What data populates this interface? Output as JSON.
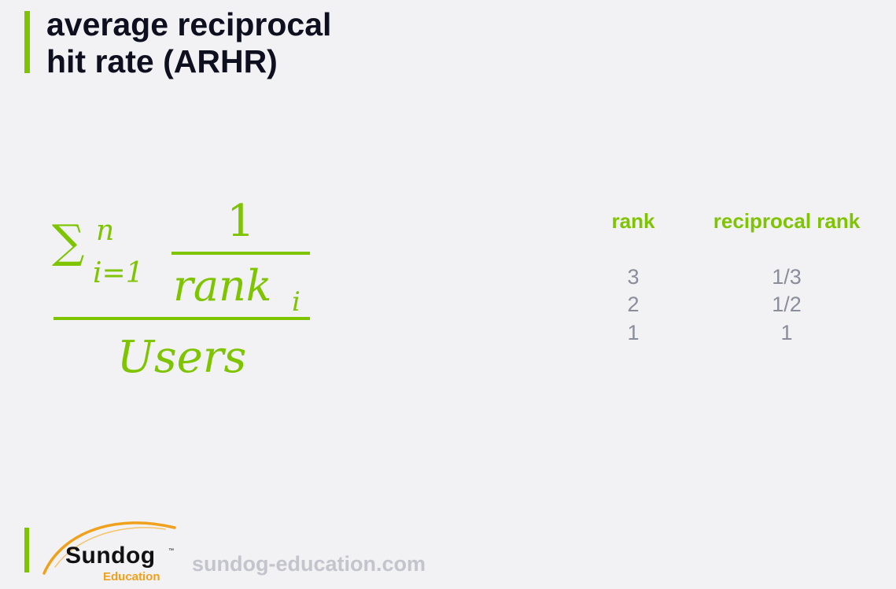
{
  "slide": {
    "title_line1": "average reciprocal",
    "title_line2": "hit rate (ARHR)",
    "accent_color": "#7ec400"
  },
  "formula": {
    "sum_symbol": "∑",
    "upper_limit": "n",
    "lower_limit": "i=1",
    "numerator": "1",
    "denominator": "rank",
    "denominator_subscript": "i",
    "outer_denominator": "Users"
  },
  "table": {
    "headers": [
      "rank",
      "reciprocal rank"
    ],
    "rows": [
      [
        "3",
        "1/3"
      ],
      [
        "2",
        "1/2"
      ],
      [
        "1",
        "1"
      ]
    ]
  },
  "footer": {
    "logo_name": "Sundog",
    "logo_tm": "™",
    "logo_sub": "Education",
    "website": "sundog-education.com"
  }
}
